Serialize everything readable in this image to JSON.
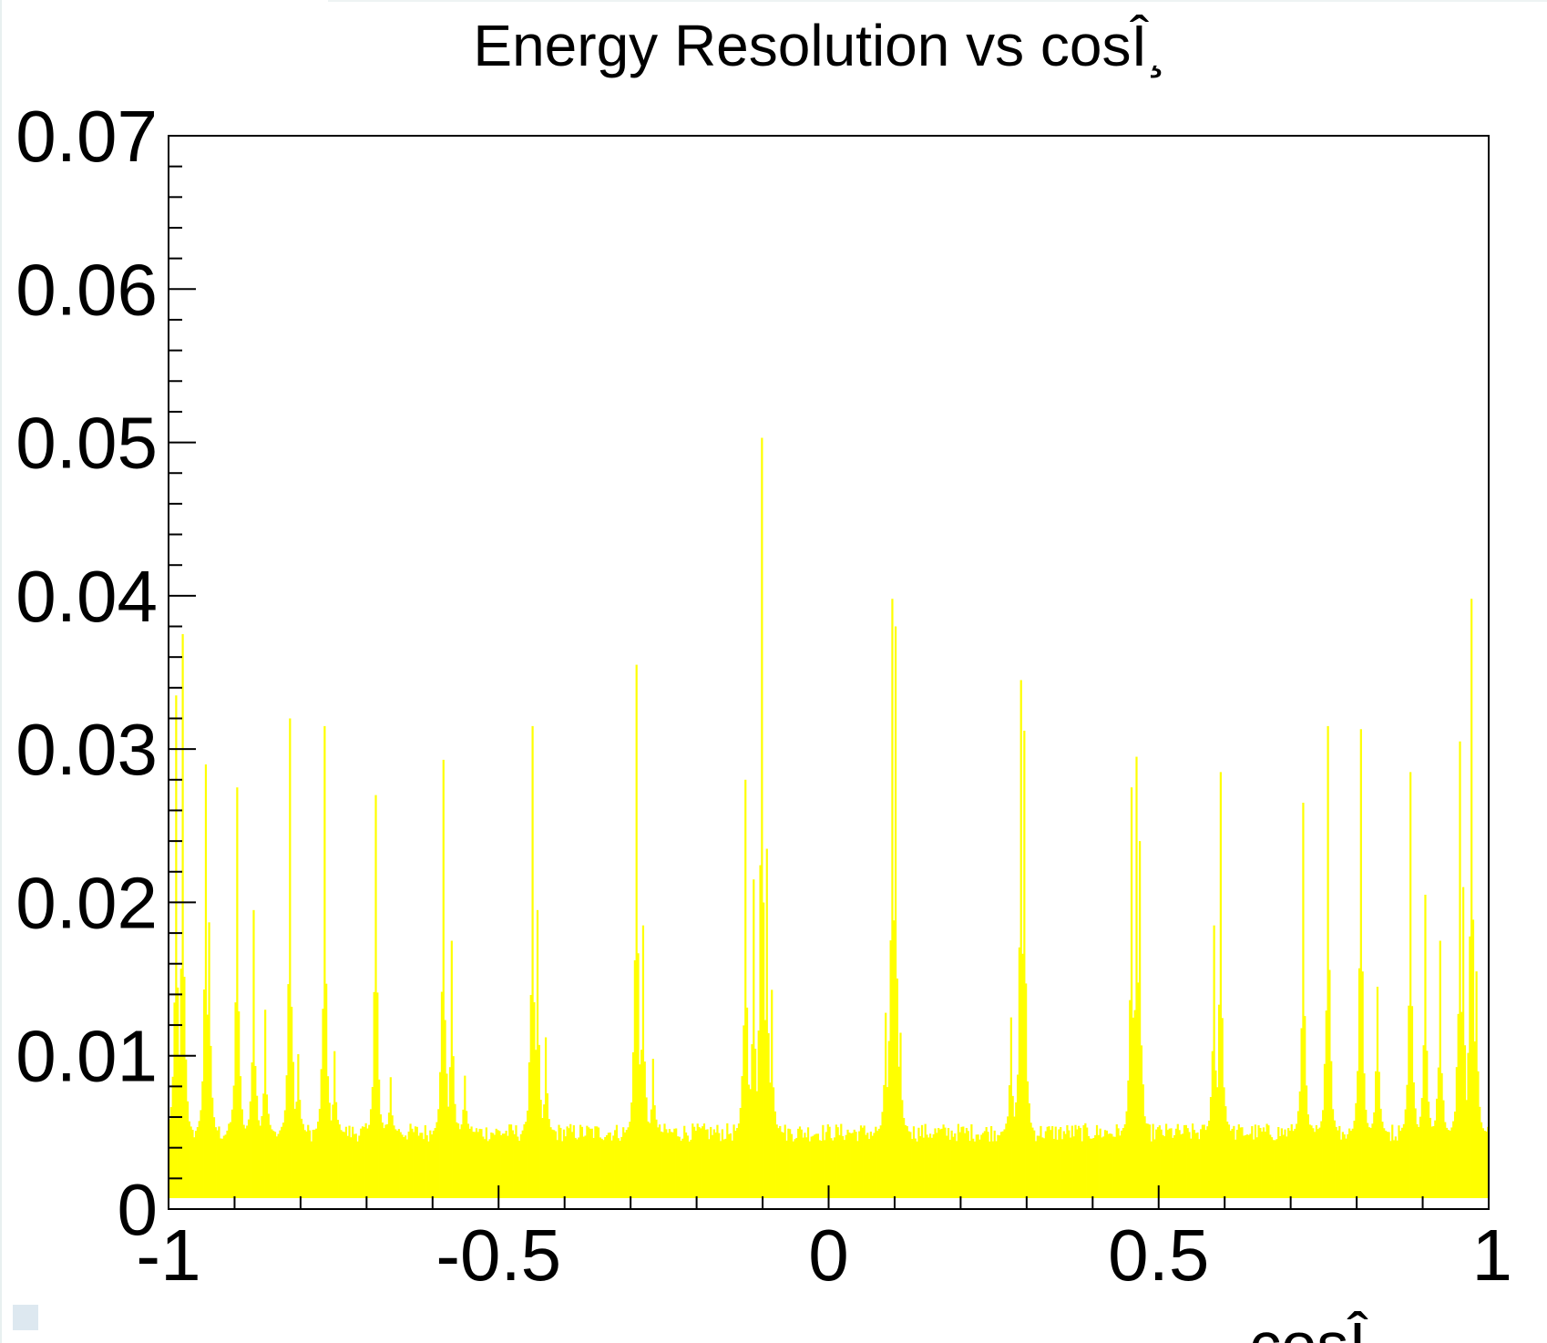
{
  "chart_data": {
    "type": "bar",
    "title": "Energy Resolution vs cosÎ¸",
    "xlabel": "cosÎ¸",
    "ylabel": "",
    "xlim": [
      -1,
      1
    ],
    "ylim": [
      0,
      0.07
    ],
    "grid": false,
    "legend": "none",
    "fill_color": "#ffff00",
    "x_tick_labels": [
      "-1",
      "-0.5",
      "0",
      "0.5",
      "1"
    ],
    "y_tick_labels": [
      "0",
      "0.01",
      "0.02",
      "0.03",
      "0.04",
      "0.05",
      "0.06",
      "0.07"
    ],
    "baseline": 0.005,
    "peaks": [
      {
        "x": -0.9905,
        "y": 0.0335
      },
      {
        "x": -0.98,
        "y": 0.0375
      },
      {
        "x": -0.9445,
        "y": 0.029
      },
      {
        "x": -0.9405,
        "y": 0.0187
      },
      {
        "x": -0.8975,
        "y": 0.0275
      },
      {
        "x": -0.872,
        "y": 0.0195
      },
      {
        "x": -0.856,
        "y": 0.013
      },
      {
        "x": -0.817,
        "y": 0.032
      },
      {
        "x": -0.805,
        "y": 0.0101
      },
      {
        "x": -0.7655,
        "y": 0.0315
      },
      {
        "x": -0.751,
        "y": 0.0103
      },
      {
        "x": -0.687,
        "y": 0.027
      },
      {
        "x": -0.664,
        "y": 0.0086
      },
      {
        "x": -0.584,
        "y": 0.0293
      },
      {
        "x": -0.573,
        "y": 0.0175
      },
      {
        "x": -0.553,
        "y": 0.0087
      },
      {
        "x": -0.451,
        "y": 0.0315
      },
      {
        "x": -0.442,
        "y": 0.0195
      },
      {
        "x": -0.429,
        "y": 0.0112
      },
      {
        "x": -0.292,
        "y": 0.0355
      },
      {
        "x": -0.282,
        "y": 0.0185
      },
      {
        "x": -0.267,
        "y": 0.0098
      },
      {
        "x": -0.128,
        "y": 0.028
      },
      {
        "x": -0.114,
        "y": 0.0215
      },
      {
        "x": -0.102,
        "y": 0.0503
      },
      {
        "x": -0.095,
        "y": 0.0235
      },
      {
        "x": -0.087,
        "y": 0.0143
      },
      {
        "x": 0.086,
        "y": 0.0128
      },
      {
        "x": 0.094,
        "y": 0.0398
      },
      {
        "x": 0.1,
        "y": 0.038
      },
      {
        "x": 0.108,
        "y": 0.0115
      },
      {
        "x": 0.276,
        "y": 0.0125
      },
      {
        "x": 0.291,
        "y": 0.0345
      },
      {
        "x": 0.296,
        "y": 0.0312
      },
      {
        "x": 0.458,
        "y": 0.0275
      },
      {
        "x": 0.464,
        "y": 0.0295
      },
      {
        "x": 0.469,
        "y": 0.024
      },
      {
        "x": 0.582,
        "y": 0.0185
      },
      {
        "x": 0.592,
        "y": 0.0285
      },
      {
        "x": 0.718,
        "y": 0.0265
      },
      {
        "x": 0.756,
        "y": 0.0315
      },
      {
        "x": 0.805,
        "y": 0.0313
      },
      {
        "x": 0.83,
        "y": 0.0145
      },
      {
        "x": 0.88,
        "y": 0.0285
      },
      {
        "x": 0.903,
        "y": 0.0205
      },
      {
        "x": 0.926,
        "y": 0.0175
      },
      {
        "x": 0.955,
        "y": 0.0305
      },
      {
        "x": 0.96,
        "y": 0.021
      },
      {
        "x": 0.9735,
        "y": 0.0398
      },
      {
        "x": 0.979,
        "y": 0.0155
      }
    ]
  }
}
